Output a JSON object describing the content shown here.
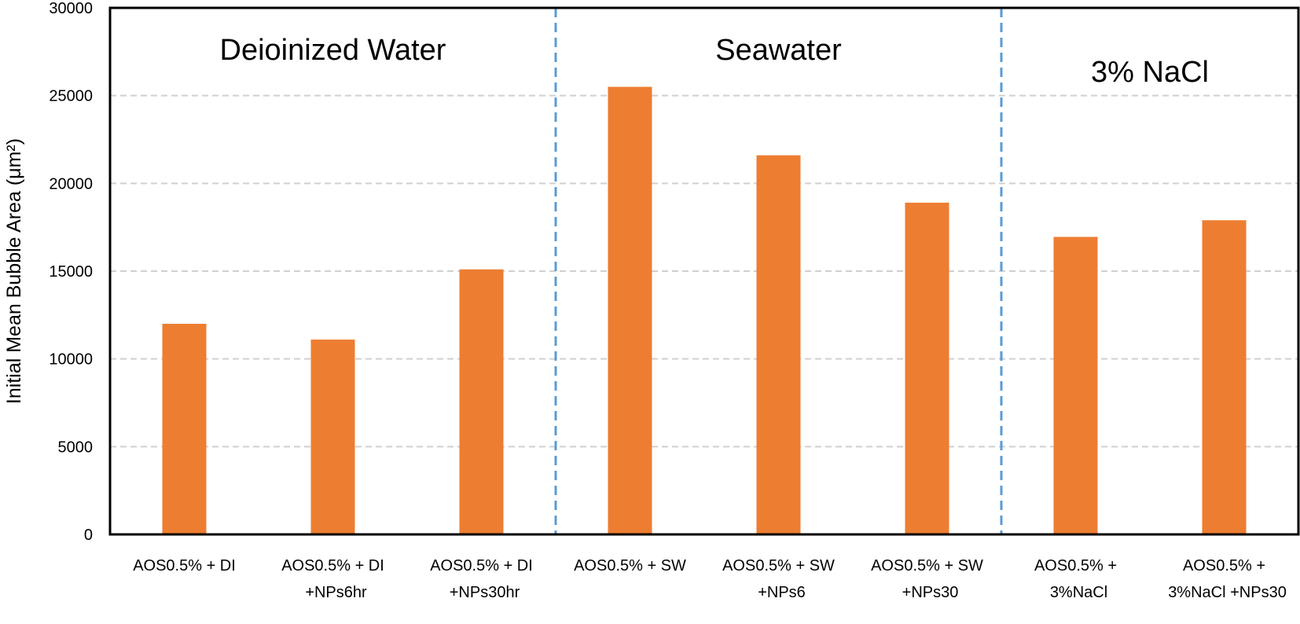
{
  "chart_data": {
    "type": "bar",
    "title": "",
    "xlabel": "",
    "ylabel": "Initial Mean Bubble Area (μm²)",
    "ylim": [
      0,
      30000
    ],
    "yticks": [
      0,
      5000,
      10000,
      15000,
      20000,
      25000,
      30000
    ],
    "grid": "horizontal-dashed",
    "categories": [
      [
        "AOS0.5% + DI"
      ],
      [
        "AOS0.5% + DI",
        "+NPs6hr"
      ],
      [
        "AOS0.5% + DI",
        "+NPs30hr"
      ],
      [
        "AOS0.5% + SW"
      ],
      [
        "AOS0.5% + SW",
        "+NPs6"
      ],
      [
        "AOS0.5% + SW",
        "+NPs30"
      ],
      [
        "AOS0.5% +",
        "3%NaCl"
      ],
      [
        "AOS0.5% +",
        "3%NaCl  +NPs30"
      ]
    ],
    "values": [
      12000,
      11100,
      15100,
      25500,
      21600,
      18900,
      16950,
      17900
    ],
    "groups": [
      {
        "label": "Deioinized Water",
        "start": 0,
        "end": 2
      },
      {
        "label": "Seawater",
        "start": 3,
        "end": 5
      },
      {
        "label": "3% NaCl",
        "start": 6,
        "end": 7
      }
    ],
    "dividers_after": [
      2,
      5
    ],
    "colors": {
      "bar": "#ED7D31",
      "divider": "#5B9BD5",
      "grid": "#D0D0D0",
      "axis": "#000000"
    }
  }
}
